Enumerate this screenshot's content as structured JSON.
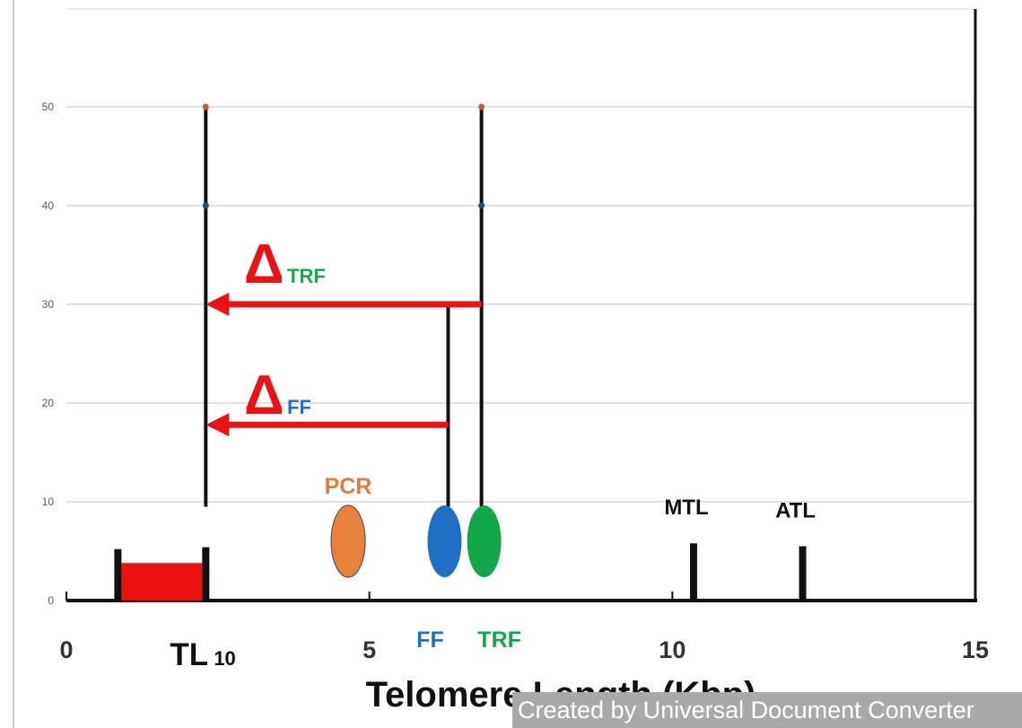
{
  "chart_data": {
    "type": "scatter",
    "xlabel": "Telomere Length (Kbp)",
    "xlim": [
      0,
      15
    ],
    "ylim": [
      0,
      60
    ],
    "x_ticks": [
      0,
      5,
      10,
      15
    ],
    "y_ticks": [
      0,
      10,
      20,
      30,
      40,
      50
    ],
    "grid": true,
    "vertical_lines": [
      {
        "x": 2.3,
        "y_from": 9.5,
        "y_to": 50
      },
      {
        "x": 6.85,
        "y_from": 9.5,
        "y_to": 50
      },
      {
        "x": 6.3,
        "y_from": 9.5,
        "y_to": 30
      }
    ],
    "points": [
      {
        "x": 2.3,
        "y": 50,
        "color": "#c0622b"
      },
      {
        "x": 2.3,
        "y": 40,
        "color": "#1f4e79"
      },
      {
        "x": 6.85,
        "y": 50,
        "color": "#c0622b"
      },
      {
        "x": 6.85,
        "y": 40,
        "color": "#1f4e79"
      }
    ],
    "arrows": [
      {
        "from_x": 6.85,
        "to_x": 2.3,
        "y": 30,
        "color": "#ee1111",
        "label_symbol": "Δ",
        "label_sub": "TRF",
        "sub_color": "#1aa84a"
      },
      {
        "from_x": 6.3,
        "to_x": 2.3,
        "y": 17.8,
        "color": "#ee1111",
        "label_symbol": "Δ",
        "label_sub": "FF",
        "sub_color": "#1f6fc4"
      }
    ],
    "ellipses": [
      {
        "name": "PCR",
        "x": 4.65,
        "y": 6,
        "color": "#e8823a",
        "label": "PCR",
        "label_color": "#e07b39"
      },
      {
        "name": "FF",
        "x": 6.3,
        "y": 6,
        "color": "#1f6fc4",
        "label": "FF",
        "label_color": "#1f6fc4"
      },
      {
        "name": "TRF",
        "x": 6.85,
        "y": 6,
        "color": "#10a84a",
        "label": "TRF",
        "label_color": "#10a84a"
      }
    ],
    "markers": [
      {
        "name": "MTL",
        "x": 10.35,
        "height": 5.8,
        "label": "MTL"
      },
      {
        "name": "ATL",
        "x": 12.15,
        "height": 5.5,
        "label": "ATL"
      }
    ],
    "range_bar": {
      "x_from": 0.85,
      "x_to": 2.3,
      "height": 3.8,
      "color": "#ee1111",
      "tick_height_left": 5.2,
      "tick_height_right": 5.4
    },
    "tl_label": {
      "main": "TL",
      "sub": "10",
      "x": 2.3
    }
  },
  "watermark": "Created by Universal Document Converter"
}
